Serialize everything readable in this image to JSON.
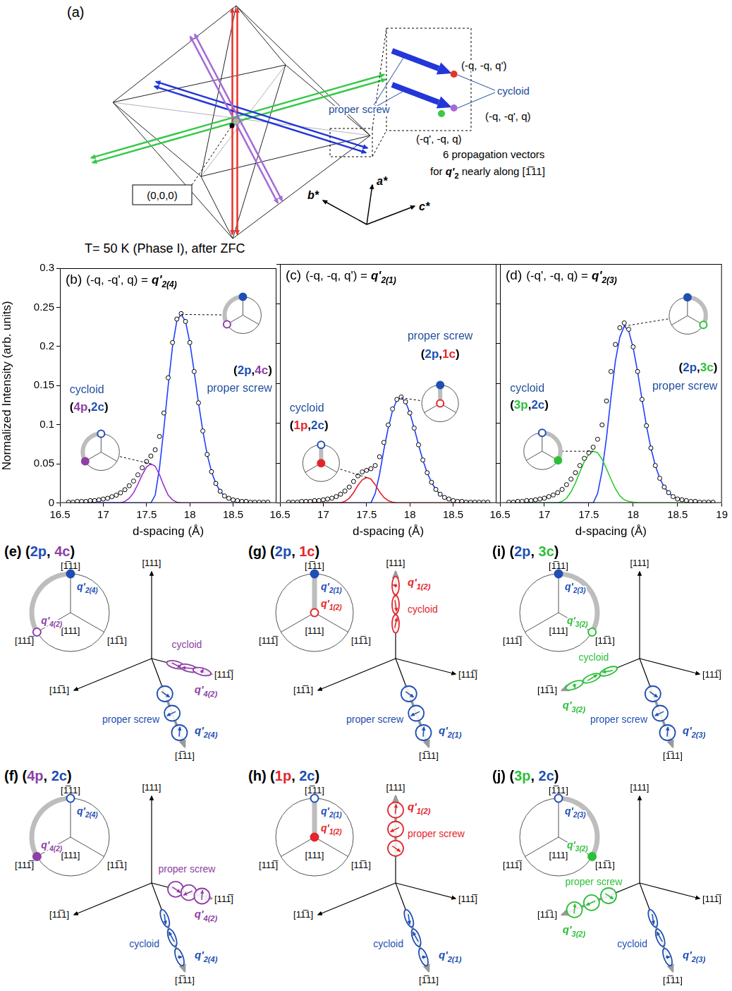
{
  "panel_a": {
    "letter": "(a)",
    "origin": "(0,0,0)",
    "proper_screw": "proper screw",
    "cycloid": "cycloid",
    "vectors": [
      "(-q, -q, q')",
      "(-q, -q', q)",
      "(-q', -q, q)"
    ],
    "caption": [
      "6 propagation vectors",
      {
        "pre": "for ",
        "main": "q'",
        "sub": "2",
        "post": " nearly along [1̅11]"
      }
    ],
    "axes": [
      "b*",
      "a*",
      "c*"
    ]
  },
  "header": "T= 50 K (Phase I), after ZFC",
  "chart_data": [
    {
      "type": "line",
      "panel": "(b)",
      "formula": "(-q, -q', q) =",
      "vector": {
        "main": "q'",
        "sub": "2(4)"
      },
      "x_label": "d-spacing (Å)",
      "y_label": "Normalized Intensity (arb. units)",
      "xlim": [
        16.5,
        19
      ],
      "xticks": [
        16.5,
        17,
        17.5,
        18,
        18.5
      ],
      "ylim": [
        0,
        0.3
      ],
      "yticks": [
        0,
        0.05,
        0.1,
        0.15,
        0.2,
        0.25,
        0.3
      ],
      "x": [
        16.6,
        16.65,
        16.7,
        16.75,
        16.8,
        16.85,
        16.9,
        16.95,
        17,
        17.05,
        17.1,
        17.15,
        17.2,
        17.25,
        17.3,
        17.35,
        17.4,
        17.45,
        17.5,
        17.55,
        17.6,
        17.65,
        17.7,
        17.75,
        17.8,
        17.85,
        17.9,
        17.95,
        18,
        18.05,
        18.1,
        18.15,
        18.2,
        18.25,
        18.3,
        18.35,
        18.4,
        18.45,
        18.5,
        18.55,
        18.6,
        18.65,
        18.7,
        18.75,
        18.8,
        18.85,
        18.9
      ],
      "series": [
        {
          "type": "scatter",
          "marker": "open-circle",
          "color": "#000000",
          "values": [
            0.001,
            0.001,
            0.002,
            0.002,
            0.002,
            0.003,
            0.003,
            0.004,
            0.005,
            0.006,
            0.008,
            0.01,
            0.013,
            0.017,
            0.022,
            0.028,
            0.036,
            0.045,
            0.053,
            0.06,
            0.068,
            0.085,
            0.115,
            0.16,
            0.205,
            0.235,
            0.242,
            0.232,
            0.205,
            0.168,
            0.128,
            0.092,
            0.062,
            0.04,
            0.025,
            0.015,
            0.009,
            0.006,
            0.004,
            0.003,
            0.002,
            0.002,
            0.001,
            0.001,
            0.001,
            0.001,
            0.001
          ]
        },
        {
          "type": "line",
          "name": "cycloid",
          "tag": "(4p,2c)",
          "color": "#9933cc",
          "values": [
            0,
            0,
            0,
            0,
            0,
            0,
            0,
            0,
            0,
            0,
            0,
            0,
            0,
            0.002,
            0.006,
            0.013,
            0.024,
            0.036,
            0.046,
            0.05,
            0.047,
            0.036,
            0.022,
            0.01,
            0.004,
            0.001,
            0,
            0,
            0,
            0,
            0,
            0,
            0,
            0,
            0,
            0,
            0,
            0,
            0,
            0,
            0,
            0,
            0,
            0,
            0,
            0,
            0
          ]
        },
        {
          "type": "line",
          "name": "proper screw",
          "tag": "(2p,4c)",
          "color": "#1f3fff",
          "values": [
            0,
            0,
            0,
            0,
            0,
            0,
            0,
            0,
            0,
            0,
            0,
            0,
            0,
            0,
            0,
            0,
            0,
            0,
            0,
            0,
            0.01,
            0.045,
            0.095,
            0.15,
            0.2,
            0.233,
            0.241,
            0.232,
            0.205,
            0.168,
            0.128,
            0.092,
            0.062,
            0.04,
            0.025,
            0.015,
            0.009,
            0.006,
            0.004,
            0.003,
            0.002,
            0,
            0,
            0,
            0,
            0,
            0
          ]
        }
      ]
    },
    {
      "type": "line",
      "panel": "(c)",
      "formula": "(-q, -q, q') =",
      "vector": {
        "main": "q'",
        "sub": "2(1)"
      },
      "x_label": "d-spacing (Å)",
      "tick_labels": "x",
      "xlim": [
        16.5,
        19
      ],
      "xticks": [
        16.5,
        17,
        17.5,
        18,
        18.5
      ],
      "ylim": [
        0,
        0.3
      ],
      "yticks": [
        0,
        0.05,
        0.1,
        0.15,
        0.2,
        0.25,
        0.3
      ],
      "x": [
        16.6,
        16.65,
        16.7,
        16.75,
        16.8,
        16.85,
        16.9,
        16.95,
        17,
        17.05,
        17.1,
        17.15,
        17.2,
        17.25,
        17.3,
        17.35,
        17.4,
        17.45,
        17.5,
        17.55,
        17.6,
        17.65,
        17.7,
        17.75,
        17.8,
        17.85,
        17.9,
        17.95,
        18,
        18.05,
        18.1,
        18.15,
        18.2,
        18.25,
        18.3,
        18.35,
        18.4,
        18.45,
        18.5,
        18.55,
        18.6,
        18.65,
        18.7,
        18.75,
        18.8,
        18.85,
        18.9
      ],
      "series": [
        {
          "type": "scatter",
          "marker": "open-circle",
          "color": "#000000",
          "values": [
            0.001,
            0.001,
            0.001,
            0.002,
            0.002,
            0.002,
            0.003,
            0.003,
            0.004,
            0.005,
            0.006,
            0.008,
            0.011,
            0.015,
            0.02,
            0.027,
            0.034,
            0.039,
            0.041,
            0.043,
            0.047,
            0.058,
            0.076,
            0.098,
            0.118,
            0.13,
            0.133,
            0.127,
            0.113,
            0.094,
            0.073,
            0.054,
            0.038,
            0.026,
            0.017,
            0.011,
            0.007,
            0.005,
            0.003,
            0.002,
            0.002,
            0.001,
            0.001,
            0.001,
            0.001,
            0.001,
            0.001
          ]
        },
        {
          "type": "line",
          "name": "cycloid",
          "tag": "(1p,2c)",
          "color": "#e8202a",
          "values": [
            0,
            0,
            0,
            0,
            0,
            0,
            0,
            0,
            0,
            0,
            0,
            0,
            0,
            0.002,
            0.006,
            0.013,
            0.022,
            0.029,
            0.032,
            0.03,
            0.023,
            0.014,
            0.007,
            0.003,
            0.001,
            0,
            0,
            0,
            0,
            0,
            0,
            0,
            0,
            0,
            0,
            0,
            0,
            0,
            0,
            0,
            0,
            0,
            0,
            0,
            0,
            0,
            0
          ]
        },
        {
          "type": "line",
          "name": "proper screw",
          "tag": "(2p,1c)",
          "color": "#1f3fff",
          "values": [
            0,
            0,
            0,
            0,
            0,
            0,
            0,
            0,
            0,
            0,
            0,
            0,
            0,
            0,
            0,
            0,
            0,
            0,
            0,
            0,
            0.012,
            0.036,
            0.067,
            0.094,
            0.116,
            0.129,
            0.132,
            0.127,
            0.113,
            0.094,
            0.073,
            0.054,
            0.038,
            0.026,
            0.017,
            0.011,
            0.007,
            0.005,
            0.003,
            0.002,
            0.001,
            0,
            0,
            0,
            0,
            0,
            0
          ]
        }
      ]
    },
    {
      "type": "line",
      "panel": "(d)",
      "formula": "(-q', -q, q) =",
      "vector": {
        "main": "q'",
        "sub": "2(3)"
      },
      "x_label": "d-spacing (Å)",
      "tick_labels": "x",
      "xlim": [
        16.5,
        19
      ],
      "xticks": [
        16.5,
        17,
        17.5,
        18,
        18.5,
        19
      ],
      "ylim": [
        0,
        0.3
      ],
      "yticks": [
        0,
        0.05,
        0.1,
        0.15,
        0.2,
        0.25,
        0.3
      ],
      "x": [
        16.6,
        16.65,
        16.7,
        16.75,
        16.8,
        16.85,
        16.9,
        16.95,
        17,
        17.05,
        17.1,
        17.15,
        17.2,
        17.25,
        17.3,
        17.35,
        17.4,
        17.45,
        17.5,
        17.55,
        17.6,
        17.65,
        17.7,
        17.75,
        17.8,
        17.85,
        17.9,
        17.95,
        18,
        18.05,
        18.1,
        18.15,
        18.2,
        18.25,
        18.3,
        18.35,
        18.4,
        18.45,
        18.5,
        18.55,
        18.6,
        18.65,
        18.7,
        18.75,
        18.8,
        18.85,
        18.9
      ],
      "series": [
        {
          "type": "scatter",
          "marker": "open-circle",
          "color": "#000000",
          "values": [
            0.001,
            0.001,
            0.002,
            0.002,
            0.003,
            0.003,
            0.004,
            0.005,
            0.006,
            0.008,
            0.01,
            0.013,
            0.017,
            0.023,
            0.03,
            0.038,
            0.047,
            0.056,
            0.063,
            0.07,
            0.08,
            0.098,
            0.128,
            0.165,
            0.199,
            0.22,
            0.226,
            0.218,
            0.196,
            0.165,
            0.13,
            0.097,
            0.069,
            0.047,
            0.031,
            0.02,
            0.013,
            0.008,
            0.005,
            0.004,
            0.003,
            0.002,
            0.002,
            0.001,
            0.001,
            0.001,
            0.001
          ]
        },
        {
          "type": "line",
          "name": "cycloid",
          "tag": "(3p,2c)",
          "color": "#33cc33",
          "values": [
            0,
            0,
            0,
            0,
            0,
            0,
            0,
            0,
            0,
            0,
            0,
            0,
            0.002,
            0.006,
            0.014,
            0.025,
            0.039,
            0.052,
            0.061,
            0.065,
            0.063,
            0.055,
            0.043,
            0.03,
            0.018,
            0.009,
            0.004,
            0.002,
            0.001,
            0,
            0,
            0,
            0,
            0,
            0,
            0,
            0,
            0,
            0,
            0,
            0,
            0,
            0,
            0,
            0,
            0,
            0
          ]
        },
        {
          "type": "line",
          "name": "proper screw",
          "tag": "(2p,3c)",
          "color": "#1f3fff",
          "values": [
            0,
            0,
            0,
            0,
            0,
            0,
            0,
            0,
            0,
            0,
            0,
            0,
            0,
            0,
            0,
            0,
            0,
            0,
            0,
            0,
            0.012,
            0.04,
            0.082,
            0.132,
            0.178,
            0.208,
            0.222,
            0.216,
            0.195,
            0.165,
            0.13,
            0.097,
            0.069,
            0.047,
            0.031,
            0.02,
            0.013,
            0.008,
            0.005,
            0.004,
            0.003,
            0.002,
            0.001,
            0,
            0,
            0,
            0
          ]
        }
      ]
    }
  ],
  "bottom": {
    "axes": [
      "[111]",
      "[1̅11]",
      "[111̅]",
      "[11̅1]"
    ],
    "panels": [
      {
        "letter": "(e)",
        "tag": "(2p, 4c)",
        "vectors": [
          {
            "main": "q'",
            "sub": "2(4)",
            "axis": "[1̅11]",
            "mode": "proper screw"
          },
          {
            "main": "q'",
            "sub": "4(2)",
            "axis": "[111̅]",
            "mode": "cycloid"
          }
        ]
      },
      {
        "letter": "(f)",
        "tag": "(4p, 2c)",
        "vectors": [
          {
            "main": "q'",
            "sub": "2(4)",
            "axis": "[1̅11]",
            "mode": "cycloid"
          },
          {
            "main": "q'",
            "sub": "4(2)",
            "axis": "[111̅]",
            "mode": "proper screw"
          }
        ]
      },
      {
        "letter": "(g)",
        "tag": "(2p, 1c)",
        "vectors": [
          {
            "main": "q'",
            "sub": "2(1)",
            "axis": "[1̅11]",
            "mode": "proper screw"
          },
          {
            "main": "q'",
            "sub": "1(2)",
            "axis": "[111]",
            "mode": "cycloid"
          }
        ]
      },
      {
        "letter": "(h)",
        "tag": "(1p, 2c)",
        "vectors": [
          {
            "main": "q'",
            "sub": "2(1)",
            "axis": "[1̅11]",
            "mode": "cycloid"
          },
          {
            "main": "q'",
            "sub": "1(2)",
            "axis": "[111]",
            "mode": "proper screw"
          }
        ]
      },
      {
        "letter": "(i)",
        "tag": "(2p, 3c)",
        "vectors": [
          {
            "main": "q'",
            "sub": "2(3)",
            "axis": "[1̅11]",
            "mode": "proper screw"
          },
          {
            "main": "q'",
            "sub": "3(2)",
            "axis": "[11̅1]",
            "mode": "cycloid"
          }
        ]
      },
      {
        "letter": "(j)",
        "tag": "(3p, 2c)",
        "vectors": [
          {
            "main": "q'",
            "sub": "2(3)",
            "axis": "[1̅11]",
            "mode": "cycloid"
          },
          {
            "main": "q'",
            "sub": "3(2)",
            "axis": "[11̅1]",
            "mode": "proper screw"
          }
        ]
      }
    ]
  }
}
